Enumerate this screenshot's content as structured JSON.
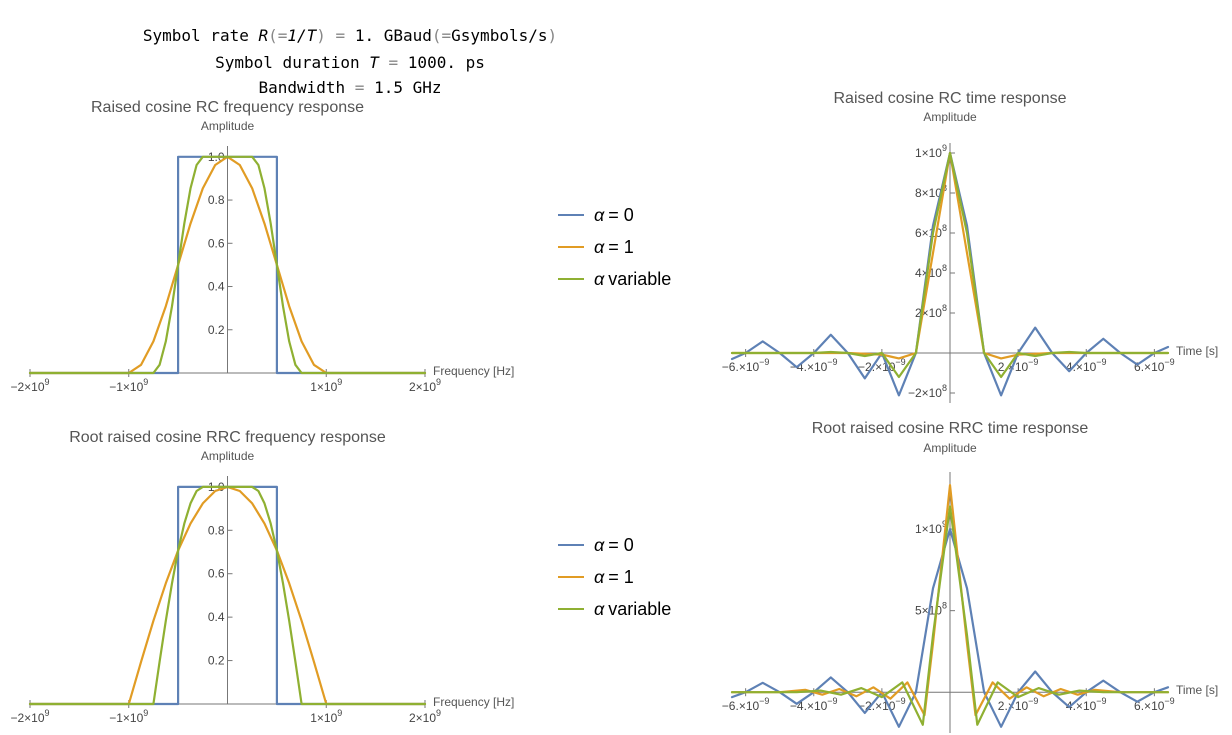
{
  "header": {
    "line1": {
      "a": "Symbol rate ",
      "b": "R",
      "c": "(=",
      "d": "1/T",
      "e": ")",
      "f": " = ",
      "g": "1. GBaud",
      "h": "(=",
      "i": "Gsymbols/s",
      "j": ")"
    },
    "line2": {
      "a": "Symbol duration ",
      "b": "T",
      "c": " = ",
      "d": "1000. ps"
    },
    "line3": {
      "a": "Bandwidth",
      "b": " = ",
      "c": "1.5 GHz"
    }
  },
  "colors": {
    "alpha0": "#5e81b5",
    "alpha1": "#e19c24",
    "variable": "#8fb032",
    "axis": "#777777"
  },
  "legends": [
    {
      "items": [
        {
          "alpha": "α",
          "text": "= 0"
        },
        {
          "alpha": "α",
          "text": "= 1"
        },
        {
          "alpha": "α",
          "text": "variable"
        }
      ]
    },
    {
      "items": [
        {
          "alpha": "α",
          "text": "= 0"
        },
        {
          "alpha": "α",
          "text": "= 1"
        },
        {
          "alpha": "α",
          "text": "variable"
        }
      ]
    }
  ],
  "chart_data": [
    {
      "id": "rc-freq",
      "type": "line",
      "title": "Raised cosine RC frequency response",
      "ylabel": "Amplitude",
      "xlabel": "Frequency [Hz]",
      "xlim": [
        -2000000000,
        2000000000
      ],
      "ylim": [
        0,
        1.05
      ],
      "xticks": [
        {
          "v": -2000000000,
          "m": "−2×10",
          "e": "9"
        },
        {
          "v": -1000000000,
          "m": "−1×10",
          "e": "9"
        },
        {
          "v": 1000000000,
          "m": "1×10",
          "e": "9"
        },
        {
          "v": 2000000000,
          "m": "2×10",
          "e": "9"
        }
      ],
      "yticks": [
        {
          "v": 0.2,
          "m": "0.2",
          "e": ""
        },
        {
          "v": 0.4,
          "m": "0.4",
          "e": ""
        },
        {
          "v": 0.6,
          "m": "0.6",
          "e": ""
        },
        {
          "v": 0.8,
          "m": "0.8",
          "e": ""
        },
        {
          "v": 1.0,
          "m": "1.0",
          "e": ""
        }
      ],
      "series": [
        {
          "key": "alpha0",
          "x": [
            -2000000000,
            -500000000,
            -500000000,
            500000000,
            500000000,
            2000000000
          ],
          "y": [
            0,
            0,
            1,
            1,
            0,
            0
          ]
        },
        {
          "key": "alpha1",
          "x": [
            -2000000000,
            -1000000000,
            -875000000,
            -750000000,
            -625000000,
            -500000000,
            -375000000,
            -250000000,
            -125000000,
            0,
            125000000,
            250000000,
            375000000,
            500000000,
            625000000,
            750000000,
            875000000,
            1000000000,
            2000000000
          ],
          "y": [
            0,
            0,
            0.038,
            0.146,
            0.309,
            0.5,
            0.691,
            0.854,
            0.962,
            1,
            0.962,
            0.854,
            0.691,
            0.5,
            0.309,
            0.146,
            0.038,
            0,
            0
          ]
        },
        {
          "key": "variable",
          "x": [
            -2000000000,
            -750000000,
            -687500000,
            -625000000,
            -562500000,
            -500000000,
            -437500000,
            -375000000,
            -312500000,
            -250000000,
            0,
            250000000,
            312500000,
            375000000,
            437500000,
            500000000,
            562500000,
            625000000,
            687500000,
            750000000,
            2000000000
          ],
          "y": [
            0,
            0,
            0.038,
            0.146,
            0.309,
            0.5,
            0.691,
            0.854,
            0.962,
            1,
            1,
            1,
            0.962,
            0.854,
            0.691,
            0.5,
            0.309,
            0.146,
            0.038,
            0,
            0
          ]
        }
      ]
    },
    {
      "id": "rc-time",
      "type": "line",
      "title": "Raised cosine RC time response",
      "ylabel": "Amplitude",
      "xlabel": "Time [s]",
      "xlim": [
        -6.4e-09,
        6.4e-09
      ],
      "ylim": [
        -250000000,
        1050000000
      ],
      "xticks": [
        {
          "v": -6e-09,
          "m": "−6.×10",
          "e": "−9"
        },
        {
          "v": -4e-09,
          "m": "−4.×10",
          "e": "−9"
        },
        {
          "v": -2e-09,
          "m": "−2.×10",
          "e": "−9"
        },
        {
          "v": 2e-09,
          "m": "2.×10",
          "e": "−9"
        },
        {
          "v": 4e-09,
          "m": "4.×10",
          "e": "−9"
        },
        {
          "v": 6e-09,
          "m": "6.×10",
          "e": "−9"
        }
      ],
      "yticks": [
        {
          "v": -200000000,
          "m": "−2×10",
          "e": "8"
        },
        {
          "v": 200000000,
          "m": "2×10",
          "e": "8"
        },
        {
          "v": 400000000,
          "m": "4×10",
          "e": "8"
        },
        {
          "v": 600000000,
          "m": "6×10",
          "e": "8"
        },
        {
          "v": 800000000,
          "m": "8×10",
          "e": "8"
        },
        {
          "v": 1000000000,
          "m": "1×10",
          "e": "9"
        }
      ],
      "series": [
        {
          "key": "alpha0",
          "x": [
            -6.4e-09,
            -6e-09,
            -5.5e-09,
            -5e-09,
            -4.5e-09,
            -4e-09,
            -3.5e-09,
            -3e-09,
            -2.5e-09,
            -2e-09,
            -1.5e-09,
            -1e-09,
            -5e-10,
            0,
            5e-10,
            1e-09,
            1.5e-09,
            2e-09,
            2.5e-09,
            3e-09,
            3.5e-09,
            4e-09,
            4.5e-09,
            5e-09,
            5.5e-09,
            6e-09,
            6.4e-09
          ],
          "y": [
            -30000000,
            0,
            58000000,
            0,
            -71000000,
            0,
            91000000,
            0,
            -127000000,
            0,
            -212000000,
            0,
            637000000,
            1000000000,
            637000000,
            0,
            -212000000,
            0,
            127000000,
            0,
            -91000000,
            0,
            71000000,
            0,
            -58000000,
            0,
            30000000
          ]
        },
        {
          "key": "alpha1",
          "x": [
            -6.4e-09,
            -3e-09,
            -2e-09,
            -1.5e-09,
            -1e-09,
            -5e-10,
            0,
            5e-10,
            1e-09,
            1.5e-09,
            2e-09,
            3e-09,
            6.4e-09
          ],
          "y": [
            0,
            0,
            -8000000,
            -27000000,
            0,
            500000000,
            1000000000,
            500000000,
            0,
            -27000000,
            -8000000,
            0,
            0
          ]
        },
        {
          "key": "variable",
          "x": [
            -6.4e-09,
            -4e-09,
            -3.5e-09,
            -3e-09,
            -2.5e-09,
            -2e-09,
            -1.5e-09,
            -1e-09,
            -5e-10,
            0,
            5e-10,
            1e-09,
            1.5e-09,
            2e-09,
            2.5e-09,
            3e-09,
            3.5e-09,
            4e-09,
            6.4e-09
          ],
          "y": [
            0,
            0,
            5000000,
            0,
            -15000000,
            0,
            -120000000,
            0,
            600000000,
            1000000000,
            600000000,
            0,
            -120000000,
            0,
            -15000000,
            0,
            5000000,
            0,
            0
          ]
        }
      ]
    },
    {
      "id": "rrc-freq",
      "type": "line",
      "title": "Root raised cosine RRC frequency response",
      "ylabel": "Amplitude",
      "xlabel": "Frequency [Hz]",
      "xlim": [
        -2000000000,
        2000000000
      ],
      "ylim": [
        0,
        1.05
      ],
      "xticks": [
        {
          "v": -2000000000,
          "m": "−2×10",
          "e": "9"
        },
        {
          "v": -1000000000,
          "m": "−1×10",
          "e": "9"
        },
        {
          "v": 1000000000,
          "m": "1×10",
          "e": "9"
        },
        {
          "v": 2000000000,
          "m": "2×10",
          "e": "9"
        }
      ],
      "yticks": [
        {
          "v": 0.2,
          "m": "0.2",
          "e": ""
        },
        {
          "v": 0.4,
          "m": "0.4",
          "e": ""
        },
        {
          "v": 0.6,
          "m": "0.6",
          "e": ""
        },
        {
          "v": 0.8,
          "m": "0.8",
          "e": ""
        },
        {
          "v": 1.0,
          "m": "1.0",
          "e": ""
        }
      ],
      "series": [
        {
          "key": "alpha0",
          "x": [
            -2000000000,
            -500000000,
            -500000000,
            500000000,
            500000000,
            2000000000
          ],
          "y": [
            0,
            0,
            1,
            1,
            0,
            0
          ]
        },
        {
          "key": "alpha1",
          "x": [
            -2000000000,
            -1000000000,
            -875000000,
            -750000000,
            -625000000,
            -500000000,
            -375000000,
            -250000000,
            -125000000,
            0,
            125000000,
            250000000,
            375000000,
            500000000,
            625000000,
            750000000,
            875000000,
            1000000000,
            2000000000
          ],
          "y": [
            0,
            0,
            0.195,
            0.383,
            0.556,
            0.707,
            0.831,
            0.924,
            0.981,
            1,
            0.981,
            0.924,
            0.831,
            0.707,
            0.556,
            0.383,
            0.195,
            0,
            0
          ]
        },
        {
          "key": "variable",
          "x": [
            -2000000000,
            -750000000,
            -687500000,
            -625000000,
            -562500000,
            -500000000,
            -437500000,
            -375000000,
            -312500000,
            -250000000,
            0,
            250000000,
            312500000,
            375000000,
            437500000,
            500000000,
            562500000,
            625000000,
            687500000,
            750000000,
            2000000000
          ],
          "y": [
            0,
            0,
            0.195,
            0.383,
            0.556,
            0.707,
            0.831,
            0.924,
            0.981,
            1,
            1,
            1,
            0.981,
            0.924,
            0.831,
            0.707,
            0.556,
            0.383,
            0.195,
            0,
            0
          ]
        }
      ]
    },
    {
      "id": "rrc-time",
      "type": "line",
      "title": "Root raised cosine RRC time response",
      "ylabel": "Amplitude",
      "xlabel": "Time [s]",
      "xlim": [
        -6.4e-09,
        6.4e-09
      ],
      "ylim": [
        -250000000,
        1350000000
      ],
      "xticks": [
        {
          "v": -6e-09,
          "m": "−6.×10",
          "e": "−9"
        },
        {
          "v": -4e-09,
          "m": "−4.×10",
          "e": "−9"
        },
        {
          "v": -2e-09,
          "m": "−2.×10",
          "e": "−9"
        },
        {
          "v": 2e-09,
          "m": "2.×10",
          "e": "−9"
        },
        {
          "v": 4e-09,
          "m": "4.×10",
          "e": "−9"
        },
        {
          "v": 6e-09,
          "m": "6.×10",
          "e": "−9"
        }
      ],
      "yticks": [
        {
          "v": 500000000,
          "m": "5×10",
          "e": "8"
        },
        {
          "v": 1000000000,
          "m": "1×10",
          "e": "9"
        }
      ],
      "series": [
        {
          "key": "alpha0",
          "x": [
            -6.4e-09,
            -6e-09,
            -5.5e-09,
            -5e-09,
            -4.5e-09,
            -4e-09,
            -3.5e-09,
            -3e-09,
            -2.5e-09,
            -2e-09,
            -1.5e-09,
            -1e-09,
            -5e-10,
            0,
            5e-10,
            1e-09,
            1.5e-09,
            2e-09,
            2.5e-09,
            3e-09,
            3.5e-09,
            4e-09,
            4.5e-09,
            5e-09,
            5.5e-09,
            6e-09,
            6.4e-09
          ],
          "y": [
            -30000000,
            0,
            58000000,
            0,
            -71000000,
            0,
            91000000,
            0,
            -127000000,
            0,
            -212000000,
            0,
            637000000,
            1000000000,
            637000000,
            0,
            -212000000,
            0,
            127000000,
            0,
            -91000000,
            0,
            71000000,
            0,
            -58000000,
            0,
            30000000
          ]
        },
        {
          "key": "alpha1",
          "x": [
            -6.4e-09,
            -5e-09,
            -4.25e-09,
            -3.75e-09,
            -3.25e-09,
            -2.75e-09,
            -2.25e-09,
            -1.75e-09,
            -1.25e-09,
            -7.5e-10,
            -5e-10,
            0,
            5e-10,
            7.5e-10,
            1.25e-09,
            1.75e-09,
            2.25e-09,
            2.75e-09,
            3.25e-09,
            3.75e-09,
            4.25e-09,
            5e-09,
            6.4e-09
          ],
          "y": [
            0,
            0,
            15000000,
            -15000000,
            20000000,
            -25000000,
            30000000,
            -40000000,
            60000000,
            -140000000,
            300000000,
            1270000000,
            300000000,
            -140000000,
            60000000,
            -40000000,
            30000000,
            -25000000,
            20000000,
            -15000000,
            15000000,
            0,
            0
          ]
        },
        {
          "key": "variable",
          "x": [
            -6.4e-09,
            -4.5e-09,
            -3.8e-09,
            -3.2e-09,
            -2.6e-09,
            -2e-09,
            -1.4e-09,
            -8e-10,
            -5e-10,
            0,
            5e-10,
            8e-10,
            1.4e-09,
            2e-09,
            2.6e-09,
            3.2e-09,
            3.8e-09,
            4.5e-09,
            6.4e-09
          ],
          "y": [
            0,
            0,
            10000000,
            -15000000,
            25000000,
            -30000000,
            60000000,
            -200000000,
            350000000,
            1140000000,
            350000000,
            -200000000,
            60000000,
            -30000000,
            25000000,
            -15000000,
            10000000,
            0,
            0
          ]
        }
      ]
    }
  ]
}
